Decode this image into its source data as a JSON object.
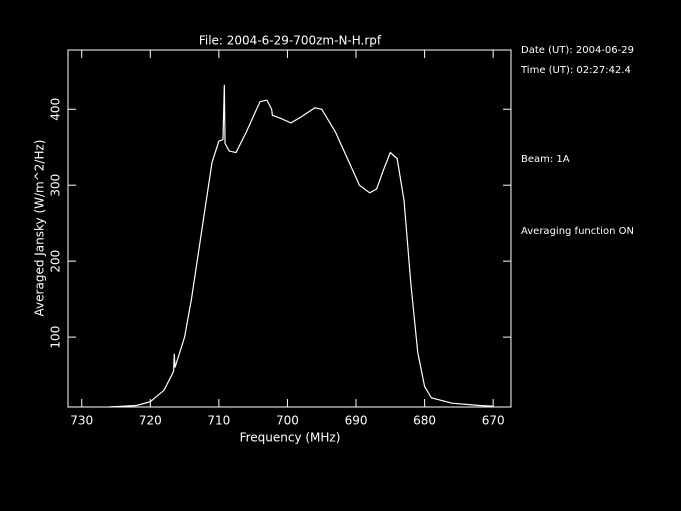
{
  "chart_data": {
    "type": "line",
    "title": "File: 2004-6-29-700zm-N-H.rpf",
    "x_label": "Frequency (MHz)",
    "y_label": "Averaged Jansky (W/m^2/Hz)",
    "annotations": [
      "Date (UT): 2004-06-29",
      "Time (UT): 02:27:42.4",
      "Beam: 1A",
      "Averaging function ON"
    ],
    "color": "#ffffff",
    "x": [
      726,
      722,
      720,
      718,
      716.6,
      716.5,
      716.4,
      715,
      714,
      713,
      712,
      711,
      710,
      709.4,
      709.2,
      709.1,
      708.5,
      707.5,
      706,
      704,
      703,
      702.3,
      702.2,
      701,
      699.5,
      698,
      696,
      695,
      693,
      691,
      689.5,
      688,
      687,
      686,
      685,
      684,
      683,
      682,
      681,
      680,
      679,
      676,
      672,
      670
    ],
    "values": [
      8,
      10,
      15,
      30,
      55,
      78,
      60,
      100,
      150,
      210,
      270,
      330,
      358,
      360,
      432,
      355,
      345,
      343,
      370,
      410,
      412,
      400,
      392,
      388,
      382,
      390,
      402,
      400,
      370,
      330,
      300,
      290,
      295,
      320,
      343,
      335,
      280,
      170,
      80,
      35,
      20,
      13,
      10,
      9
    ],
    "xlim": [
      732,
      667.4
    ],
    "ylim": [
      8,
      478
    ],
    "xticks": [
      730,
      720,
      710,
      700,
      690,
      680,
      670
    ],
    "yticks": [
      100,
      200,
      300,
      400
    ]
  }
}
